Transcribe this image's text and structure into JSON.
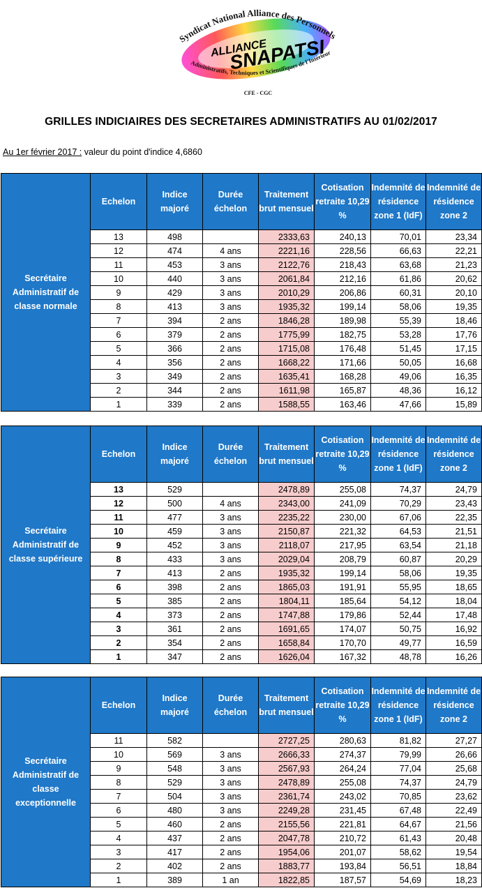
{
  "logo": {
    "arc_text": "Syndicat National Alliance des Personnels",
    "alliance": "ALLIANCE",
    "name": "SNAPATSI",
    "sub_text": "Administratifs, Techniques et Scientifiques de l'Intérieur",
    "cfe": "CFE - CGC"
  },
  "title": "GRILLES INDICIAIRES DES SECRETAIRES ADMINISTRATIFS AU 01/02/2017",
  "intro": {
    "label": "Au 1er février 2017 :",
    "text": " valeur du point d'indice 4,6860"
  },
  "headers": {
    "echelon": "Echelon",
    "indice": "Indice majoré",
    "duree": "Durée échelon",
    "traitement": "Traitement brut mensuel",
    "cotisation": "Cotisation retraite 10,29 %",
    "idf1": "Indemnité de résidence zone 1 (IdF)",
    "idf2": "Indemnité de résidence zone 2"
  },
  "colors": {
    "header_bg": "#1f78c8",
    "traitement_bg": "#f7cccc"
  },
  "tables": [
    {
      "grade": "Secrétaire Administratif de classe normale",
      "bold_echelon": false,
      "rows": [
        [
          "13",
          "498",
          "",
          "2333,63",
          "240,13",
          "70,01",
          "23,34"
        ],
        [
          "12",
          "474",
          "4 ans",
          "2221,16",
          "228,56",
          "66,63",
          "22,21"
        ],
        [
          "11",
          "453",
          "3 ans",
          "2122,76",
          "218,43",
          "63,68",
          "21,23"
        ],
        [
          "10",
          "440",
          "3 ans",
          "2061,84",
          "212,16",
          "61,86",
          "20,62"
        ],
        [
          "9",
          "429",
          "3 ans",
          "2010,29",
          "206,86",
          "60,31",
          "20,10"
        ],
        [
          "8",
          "413",
          "3 ans",
          "1935,32",
          "199,14",
          "58,06",
          "19,35"
        ],
        [
          "7",
          "394",
          "2 ans",
          "1846,28",
          "189,98",
          "55,39",
          "18,46"
        ],
        [
          "6",
          "379",
          "2 ans",
          "1775,99",
          "182,75",
          "53,28",
          "17,76"
        ],
        [
          "5",
          "366",
          "2 ans",
          "1715,08",
          "176,48",
          "51,45",
          "17,15"
        ],
        [
          "4",
          "356",
          "2 ans",
          "1668,22",
          "171,66",
          "50,05",
          "16,68"
        ],
        [
          "3",
          "349",
          "2 ans",
          "1635,41",
          "168,28",
          "49,06",
          "16,35"
        ],
        [
          "2",
          "344",
          "2 ans",
          "1611,98",
          "165,87",
          "48,36",
          "16,12"
        ],
        [
          "1",
          "339",
          "2 ans",
          "1588,55",
          "163,46",
          "47,66",
          "15,89"
        ]
      ]
    },
    {
      "grade": "Secrétaire Administratif de classe supérieure",
      "bold_echelon": true,
      "rows": [
        [
          "13",
          "529",
          "",
          "2478,89",
          "255,08",
          "74,37",
          "24,79"
        ],
        [
          "12",
          "500",
          "4 ans",
          "2343,00",
          "241,09",
          "70,29",
          "23,43"
        ],
        [
          "11",
          "477",
          "3 ans",
          "2235,22",
          "230,00",
          "67,06",
          "22,35"
        ],
        [
          "10",
          "459",
          "3 ans",
          "2150,87",
          "221,32",
          "64,53",
          "21,51"
        ],
        [
          "9",
          "452",
          "3 ans",
          "2118,07",
          "217,95",
          "63,54",
          "21,18"
        ],
        [
          "8",
          "433",
          "3 ans",
          "2029,04",
          "208,79",
          "60,87",
          "20,29"
        ],
        [
          "7",
          "413",
          "2 ans",
          "1935,32",
          "199,14",
          "58,06",
          "19,35"
        ],
        [
          "6",
          "398",
          "2 ans",
          "1865,03",
          "191,91",
          "55,95",
          "18,65"
        ],
        [
          "5",
          "385",
          "2 ans",
          "1804,11",
          "185,64",
          "54,12",
          "18,04"
        ],
        [
          "4",
          "373",
          "2 ans",
          "1747,88",
          "179,86",
          "52,44",
          "17,48"
        ],
        [
          "3",
          "361",
          "2 ans",
          "1691,65",
          "174,07",
          "50,75",
          "16,92"
        ],
        [
          "2",
          "354",
          "2 ans",
          "1658,84",
          "170,70",
          "49,77",
          "16,59"
        ],
        [
          "1",
          "347",
          "2 ans",
          "1626,04",
          "167,32",
          "48,78",
          "16,26"
        ]
      ]
    },
    {
      "grade": "Secrétaire Administratif de classe exceptionnelle",
      "bold_echelon": false,
      "rows": [
        [
          "11",
          "582",
          "",
          "2727,25",
          "280,63",
          "81,82",
          "27,27"
        ],
        [
          "10",
          "569",
          "3 ans",
          "2666,33",
          "274,37",
          "79,99",
          "26,66"
        ],
        [
          "9",
          "548",
          "3 ans",
          "2567,93",
          "264,24",
          "77,04",
          "25,68"
        ],
        [
          "8",
          "529",
          "3 ans",
          "2478,89",
          "255,08",
          "74,37",
          "24,79"
        ],
        [
          "7",
          "504",
          "3 ans",
          "2361,74",
          "243,02",
          "70,85",
          "23,62"
        ],
        [
          "6",
          "480",
          "3 ans",
          "2249,28",
          "231,45",
          "67,48",
          "22,49"
        ],
        [
          "5",
          "460",
          "2 ans",
          "2155,56",
          "221,81",
          "64,67",
          "21,56"
        ],
        [
          "4",
          "437",
          "2 ans",
          "2047,78",
          "210,72",
          "61,43",
          "20,48"
        ],
        [
          "3",
          "417",
          "2 ans",
          "1954,06",
          "201,07",
          "58,62",
          "19,54"
        ],
        [
          "2",
          "402",
          "2 ans",
          "1883,77",
          "193,84",
          "56,51",
          "18,84"
        ],
        [
          "1",
          "389",
          "1 an",
          "1822,85",
          "187,57",
          "54,69",
          "18,23"
        ]
      ]
    }
  ]
}
